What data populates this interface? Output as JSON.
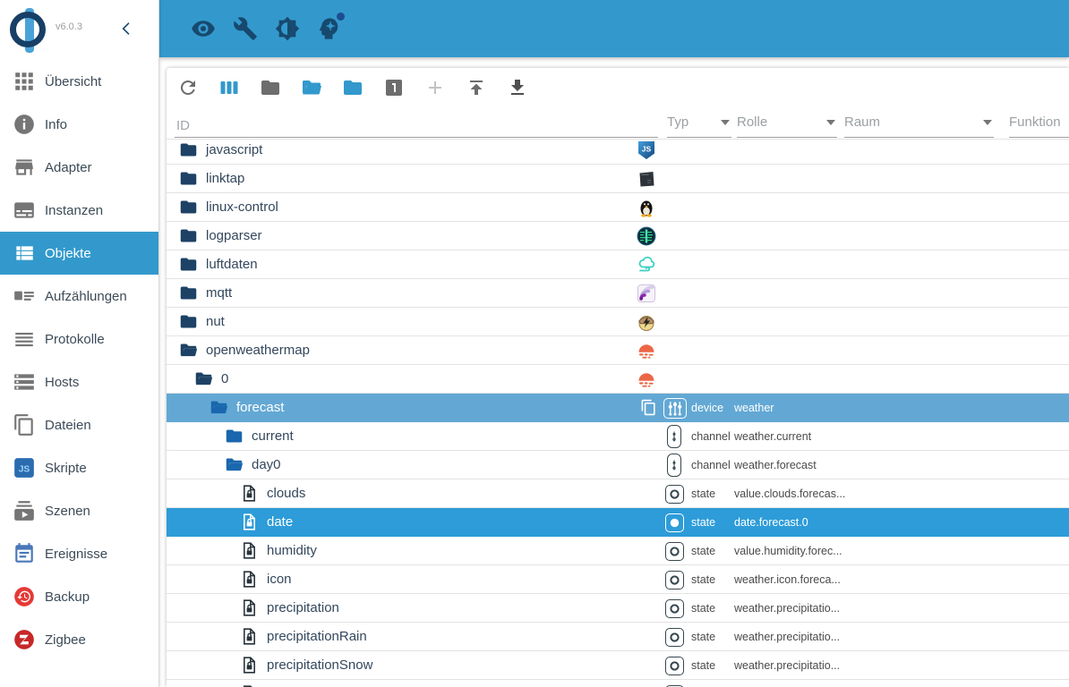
{
  "sidebar": {
    "version": "v6.0.3",
    "items": [
      {
        "label": "Übersicht",
        "icon": "grid",
        "selected": false
      },
      {
        "label": "Info",
        "icon": "info",
        "selected": false
      },
      {
        "label": "Adapter",
        "icon": "store",
        "selected": false
      },
      {
        "label": "Instanzen",
        "icon": "instances",
        "selected": false
      },
      {
        "label": "Objekte",
        "icon": "list",
        "selected": true
      },
      {
        "label": "Aufzählungen",
        "icon": "enums",
        "selected": false
      },
      {
        "label": "Protokolle",
        "icon": "log",
        "selected": false
      },
      {
        "label": "Hosts",
        "icon": "hosts",
        "selected": false
      },
      {
        "label": "Dateien",
        "icon": "files",
        "selected": false
      },
      {
        "label": "Skripte",
        "icon": "js",
        "selected": false
      },
      {
        "label": "Szenen",
        "icon": "scenes",
        "selected": false
      },
      {
        "label": "Ereignisse",
        "icon": "events",
        "selected": false
      },
      {
        "label": "Backup",
        "icon": "backup",
        "selected": false
      },
      {
        "label": "Zigbee",
        "icon": "zigbee",
        "selected": false
      }
    ]
  },
  "appbar": {
    "icons": [
      "visibility",
      "wrench",
      "brightness",
      "expert"
    ]
  },
  "toolbar": {
    "icons": [
      {
        "name": "refresh",
        "tone": "c-gray"
      },
      {
        "name": "view-column",
        "tone": "c-blue"
      },
      {
        "name": "folder",
        "tone": "c-gray"
      },
      {
        "name": "folder-open",
        "tone": "c-blue"
      },
      {
        "name": "folder-blue",
        "tone": "c-blue"
      },
      {
        "name": "looks-one",
        "tone": "c-gray"
      },
      {
        "name": "plus",
        "tone": "c-light"
      },
      {
        "name": "upload",
        "tone": "c-gray"
      },
      {
        "name": "download",
        "tone": "c-dark"
      }
    ]
  },
  "filters": {
    "id_placeholder": "ID",
    "dropdowns": [
      "Typ",
      "Rolle",
      "Raum",
      "Funktion"
    ]
  },
  "tree": {
    "rows": [
      {
        "id": "javascript",
        "level": 0,
        "icon": "folder-dark",
        "logo": "javascript"
      },
      {
        "id": "linktap",
        "level": 0,
        "icon": "folder-dark",
        "logo": "linktap"
      },
      {
        "id": "linux-control",
        "level": 0,
        "icon": "folder-dark",
        "logo": "linux"
      },
      {
        "id": "logparser",
        "level": 0,
        "icon": "folder-dark",
        "logo": "logparser"
      },
      {
        "id": "luftdaten",
        "level": 0,
        "icon": "folder-dark",
        "logo": "luftdaten"
      },
      {
        "id": "mqtt",
        "level": 0,
        "icon": "folder-dark",
        "logo": "mqtt"
      },
      {
        "id": "nut",
        "level": 0,
        "icon": "folder-dark",
        "logo": "nut"
      },
      {
        "id": "openweathermap",
        "level": 0,
        "icon": "folder-open-dark",
        "logo": "openweathermap"
      },
      {
        "id": "0",
        "level": 1,
        "icon": "folder-open-dark",
        "logo": "openweathermap"
      },
      {
        "id": "forecast",
        "level": 2,
        "icon": "folder-open-bright",
        "highlight": true,
        "copy": true,
        "type": "device",
        "role": "weather"
      },
      {
        "id": "current",
        "level": 3,
        "icon": "folder-bright",
        "type": "channel",
        "role": "weather.current"
      },
      {
        "id": "day0",
        "level": 3,
        "icon": "folder-open-bright",
        "type": "channel",
        "role": "weather.forecast"
      },
      {
        "id": "clouds",
        "level": 4,
        "icon": "state-doc",
        "type": "state",
        "role": "value.clouds.forecas..."
      },
      {
        "id": "date",
        "level": 4,
        "icon": "state-doc",
        "selected": true,
        "state_filled": true,
        "type": "state",
        "role": "date.forecast.0"
      },
      {
        "id": "humidity",
        "level": 4,
        "icon": "state-doc",
        "type": "state",
        "role": "value.humidity.forec..."
      },
      {
        "id": "icon",
        "level": 4,
        "icon": "state-doc",
        "type": "state",
        "role": "weather.icon.foreca..."
      },
      {
        "id": "precipitation",
        "level": 4,
        "icon": "state-doc",
        "type": "state",
        "role": "weather.precipitatio..."
      },
      {
        "id": "precipitationRain",
        "level": 4,
        "icon": "state-doc",
        "type": "state",
        "role": "weather.precipitatio..."
      },
      {
        "id": "precipitationSnow",
        "level": 4,
        "icon": "state-doc",
        "type": "state",
        "role": "weather.precipitatio..."
      },
      {
        "id": "",
        "level": 4,
        "icon": "state-doc",
        "type": "state",
        "role": "",
        "partial": true
      }
    ]
  },
  "colors": {
    "primary": "#3399cc",
    "row_selected": "#2d9cd8",
    "row_highlight": "#63a8d4"
  }
}
